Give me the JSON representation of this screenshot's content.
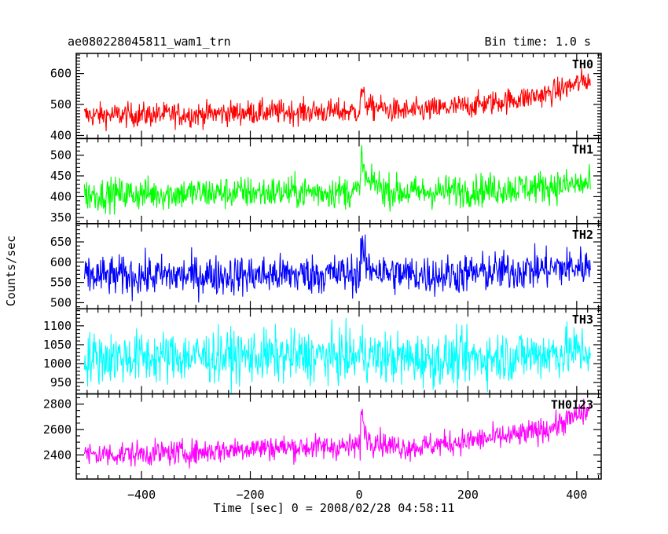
{
  "header": {
    "title": "ae080228045811_wam1_trn",
    "bin_time": "Bin time: 1.0 s"
  },
  "axes": {
    "xlabel": "Time [sec] 0 = 2008/02/28 04:58:11",
    "ylabel": "Counts/sec"
  },
  "chart_data": {
    "type": "line",
    "title": "ae080228045811_wam1_trn",
    "subtitle": "Bin time: 1.0 s",
    "xlabel": "Time [sec] 0 = 2008/02/28 04:58:11",
    "ylabel": "Counts/sec",
    "xlim": [
      -520,
      445
    ],
    "x_ticks": [
      -400,
      -200,
      0,
      200,
      400
    ],
    "x_start": -505,
    "x_end": 425,
    "bin": 1.0,
    "grid": false,
    "panels": [
      {
        "name": "TH0",
        "color": "#ff0000",
        "ylim": [
          390,
          665
        ],
        "yticks": [
          400,
          500,
          600
        ],
        "baseline": [
          [
            -505,
            465
          ],
          [
            -300,
            468
          ],
          [
            -200,
            475
          ],
          [
            -5,
            478
          ],
          [
            0,
            480
          ],
          [
            100,
            478
          ],
          [
            200,
            495
          ],
          [
            300,
            520
          ],
          [
            350,
            535
          ],
          [
            420,
            580
          ]
        ],
        "noise": 20,
        "features": [
          {
            "t": 3,
            "amp": 70,
            "decay": 10
          },
          {
            "t": 30,
            "amp": 15,
            "decay": 15
          }
        ]
      },
      {
        "name": "TH1",
        "color": "#00ff00",
        "ylim": [
          335,
          540
        ],
        "yticks": [
          350,
          400,
          450,
          500
        ],
        "baseline": [
          [
            -505,
            405
          ],
          [
            -200,
            410
          ],
          [
            0,
            412
          ],
          [
            100,
            410
          ],
          [
            250,
            418
          ],
          [
            420,
            430
          ]
        ],
        "noise": 20,
        "features": [
          {
            "t": 3,
            "amp": 95,
            "decay": 9
          },
          {
            "t": 25,
            "amp": 25,
            "decay": 15
          }
        ]
      },
      {
        "name": "TH2",
        "color": "#0000ff",
        "ylim": [
          485,
          695
        ],
        "yticks": [
          500,
          550,
          600,
          650
        ],
        "baseline": [
          [
            -505,
            565
          ],
          [
            -200,
            568
          ],
          [
            0,
            572
          ],
          [
            150,
            568
          ],
          [
            300,
            580
          ],
          [
            420,
            590
          ]
        ],
        "noise": 25,
        "features": [
          {
            "t": 3,
            "amp": 80,
            "decay": 8
          },
          {
            "t": 25,
            "amp": 20,
            "decay": 12
          }
        ]
      },
      {
        "name": "TH3",
        "color": "#00ffff",
        "ylim": [
          920,
          1145
        ],
        "yticks": [
          950,
          1000,
          1050,
          1100
        ],
        "baseline": [
          [
            -505,
            1015
          ],
          [
            -200,
            1020
          ],
          [
            0,
            1018
          ],
          [
            150,
            1010
          ],
          [
            300,
            1022
          ],
          [
            420,
            1035
          ]
        ],
        "noise": 35,
        "features": [
          {
            "t": 3,
            "amp": 30,
            "decay": 8
          }
        ]
      },
      {
        "name": "TH0123",
        "color": "#ff00ff",
        "ylim": [
          2210,
          2880
        ],
        "yticks": [
          2400,
          2600,
          2800
        ],
        "baseline": [
          [
            -505,
            2400
          ],
          [
            -300,
            2420
          ],
          [
            -200,
            2455
          ],
          [
            -5,
            2465
          ],
          [
            0,
            2470
          ],
          [
            100,
            2460
          ],
          [
            200,
            2510
          ],
          [
            300,
            2560
          ],
          [
            350,
            2610
          ],
          [
            420,
            2740
          ]
        ],
        "noise": 50,
        "features": [
          {
            "t": 3,
            "amp": 300,
            "decay": 9
          },
          {
            "t": 28,
            "amp": 60,
            "decay": 15
          }
        ]
      }
    ]
  }
}
